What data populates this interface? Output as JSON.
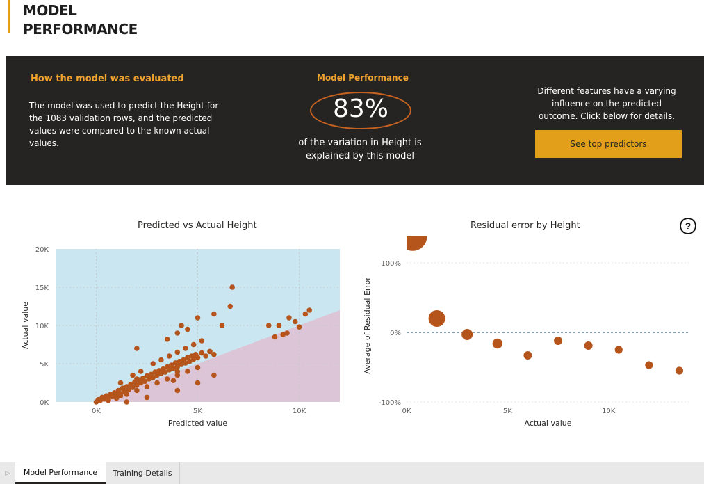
{
  "page": {
    "title_line1": "MODEL",
    "title_line2": "PERFORMANCE",
    "accent_color": "#e2a01a"
  },
  "evaluation": {
    "heading": "How the model was evaluated",
    "text": "The model was used to predict the Height for the 1083 validation rows, and the predicted values were compared to the known actual values."
  },
  "performance": {
    "heading": "Model Performance",
    "value": "83%",
    "subtext": "of the variation in Height is explained by this model"
  },
  "features": {
    "text": "Different features have a varying influence on the predicted outcome. Click below for details.",
    "button_label": "See top predictors"
  },
  "chart_data": [
    {
      "type": "scatter",
      "title": "Predicted vs Actual Height",
      "xlabel": "Predicted value",
      "ylabel": "Actual value",
      "xlim": [
        -2000,
        12000
      ],
      "ylim": [
        0,
        20000
      ],
      "x_ticks": [
        "0K",
        "5K",
        "10K"
      ],
      "y_ticks": [
        "0K",
        "5K",
        "10K",
        "15K",
        "20K"
      ],
      "point_color": "#b5541b",
      "region_colors": {
        "above": "#c9e6f1",
        "below": "#dcc5d6"
      },
      "points": [
        [
          0,
          0
        ],
        [
          100,
          300
        ],
        [
          200,
          200
        ],
        [
          300,
          600
        ],
        [
          400,
          400
        ],
        [
          500,
          800
        ],
        [
          600,
          500
        ],
        [
          700,
          1000
        ],
        [
          800,
          700
        ],
        [
          900,
          1200
        ],
        [
          1000,
          900
        ],
        [
          1100,
          1500
        ],
        [
          1200,
          1100
        ],
        [
          1300,
          1800
        ],
        [
          1400,
          1300
        ],
        [
          1500,
          2000
        ],
        [
          1600,
          1600
        ],
        [
          1700,
          2300
        ],
        [
          1800,
          1900
        ],
        [
          1900,
          2600
        ],
        [
          2000,
          2200
        ],
        [
          2100,
          2900
        ],
        [
          2200,
          2500
        ],
        [
          2300,
          3100
        ],
        [
          2400,
          2700
        ],
        [
          2500,
          3400
        ],
        [
          2600,
          3000
        ],
        [
          2700,
          3600
        ],
        [
          2800,
          3200
        ],
        [
          2900,
          3900
        ],
        [
          3000,
          3500
        ],
        [
          3100,
          4100
        ],
        [
          3200,
          3700
        ],
        [
          3300,
          4300
        ],
        [
          3400,
          3900
        ],
        [
          3500,
          4600
        ],
        [
          3600,
          4200
        ],
        [
          3700,
          4800
        ],
        [
          3800,
          4400
        ],
        [
          3900,
          5100
        ],
        [
          4000,
          4600
        ],
        [
          4100,
          5300
        ],
        [
          4200,
          4900
        ],
        [
          4300,
          5500
        ],
        [
          4400,
          5100
        ],
        [
          4500,
          5800
        ],
        [
          4600,
          5300
        ],
        [
          4700,
          6000
        ],
        [
          4800,
          5600
        ],
        [
          4900,
          6200
        ],
        [
          5000,
          5800
        ],
        [
          5200,
          6400
        ],
        [
          5400,
          6000
        ],
        [
          5600,
          6600
        ],
        [
          5800,
          6200
        ],
        [
          600,
          200
        ],
        [
          1000,
          500
        ],
        [
          1500,
          1000
        ],
        [
          2000,
          1500
        ],
        [
          2500,
          2000
        ],
        [
          3000,
          2500
        ],
        [
          3500,
          3000
        ],
        [
          4000,
          3500
        ],
        [
          4500,
          4000
        ],
        [
          5000,
          4500
        ],
        [
          1200,
          2500
        ],
        [
          1800,
          3500
        ],
        [
          2200,
          4000
        ],
        [
          2800,
          5000
        ],
        [
          3200,
          5500
        ],
        [
          3600,
          6000
        ],
        [
          4000,
          6500
        ],
        [
          4400,
          7000
        ],
        [
          4800,
          7500
        ],
        [
          5200,
          8000
        ],
        [
          2000,
          7000
        ],
        [
          3500,
          8200
        ],
        [
          4000,
          9000
        ],
        [
          4200,
          10000
        ],
        [
          4500,
          9500
        ],
        [
          5000,
          11000
        ],
        [
          5800,
          11500
        ],
        [
          6200,
          10000
        ],
        [
          6600,
          12500
        ],
        [
          6700,
          15000
        ],
        [
          1500,
          0
        ],
        [
          2500,
          600
        ],
        [
          4000,
          1500
        ],
        [
          5000,
          2500
        ],
        [
          5800,
          3500
        ],
        [
          4000,
          4000
        ],
        [
          3000,
          3500
        ],
        [
          2000,
          3000
        ],
        [
          1200,
          800
        ],
        [
          3800,
          2800
        ],
        [
          8500,
          10000
        ],
        [
          9000,
          10000
        ],
        [
          9200,
          8800
        ],
        [
          9500,
          11000
        ],
        [
          9800,
          10500
        ],
        [
          10000,
          9800
        ],
        [
          10300,
          11500
        ],
        [
          10500,
          12000
        ],
        [
          9400,
          9000
        ],
        [
          8800,
          8500
        ]
      ]
    },
    {
      "type": "scatter",
      "title": "Residual error by Height",
      "xlabel": "Actual value",
      "ylabel": "Average of Residual Error",
      "xlim": [
        0,
        14000
      ],
      "ylim": [
        -100,
        120
      ],
      "x_ticks": [
        "0K",
        "5K",
        "10K"
      ],
      "y_ticks": [
        "-100%",
        "0%",
        "100%"
      ],
      "point_color": "#b5541b",
      "points": [
        {
          "x": 300,
          "y": 138,
          "size": 2.6
        },
        {
          "x": 1500,
          "y": 20,
          "size": 1.5
        },
        {
          "x": 3000,
          "y": -3,
          "size": 1.0
        },
        {
          "x": 4500,
          "y": -16,
          "size": 0.9
        },
        {
          "x": 6000,
          "y": -33,
          "size": 0.75
        },
        {
          "x": 7500,
          "y": -12,
          "size": 0.75
        },
        {
          "x": 9000,
          "y": -19,
          "size": 0.75
        },
        {
          "x": 10500,
          "y": -25,
          "size": 0.7
        },
        {
          "x": 12000,
          "y": -47,
          "size": 0.7
        },
        {
          "x": 13500,
          "y": -55,
          "size": 0.7
        }
      ]
    }
  ],
  "help": {
    "icon": "question-mark-icon",
    "glyph": "?"
  },
  "tabs": [
    {
      "label": "Model Performance",
      "active": true
    },
    {
      "label": "Training Details",
      "active": false
    }
  ]
}
